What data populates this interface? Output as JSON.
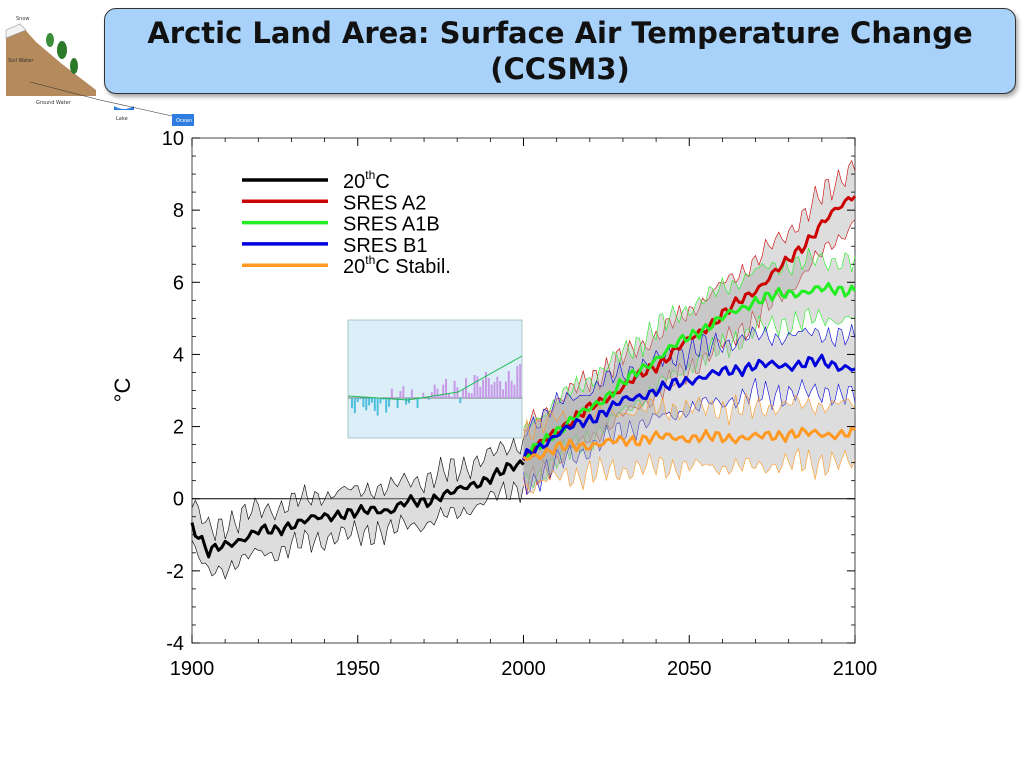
{
  "slide": {
    "title_line1": "Arctic Land Area: Surface Air Temperature Change",
    "title_line2": "(CCSM3)"
  },
  "logo": {
    "icon": "hydrologic-cycle-diagram-icon",
    "labels": {
      "snow": "Snow",
      "soil_water": "Soil Water",
      "ground_water": "Ground Water",
      "lake": "Lake",
      "ocean": "Ocean"
    }
  },
  "inset": {
    "icon": "inset-bar-chart-thumbnail"
  },
  "chart_data": {
    "type": "line",
    "title": "",
    "xlabel": "",
    "ylabel": "°C",
    "xlim": [
      1900,
      2100
    ],
    "ylim": [
      -4,
      10
    ],
    "x_ticks": [
      1900,
      1950,
      2000,
      2050,
      2100
    ],
    "y_ticks": [
      -4,
      -2,
      0,
      2,
      4,
      6,
      8,
      10
    ],
    "y_tick_labels": [
      "-4",
      "-2",
      "0",
      "2",
      "4",
      "6",
      "8",
      "10"
    ],
    "zero_line": true,
    "grid": false,
    "legend_position": "top-left",
    "legend": [
      {
        "base": "20",
        "sup": "th",
        "rest": "C",
        "color": "#000000"
      },
      {
        "base": "SRES A2",
        "sup": "",
        "rest": "",
        "color": "#cc0000"
      },
      {
        "base": "SRES A1B",
        "sup": "",
        "rest": "",
        "color": "#22ee22"
      },
      {
        "base": "SRES B1",
        "sup": "",
        "rest": "",
        "color": "#0000dd"
      },
      {
        "base": "20",
        "sup": "th",
        "rest": "C Stabil.",
        "color": "#ff9922"
      }
    ],
    "series": [
      {
        "name": "20thC",
        "color": "#000000",
        "band": true,
        "x": [
          1900,
          1905,
          1910,
          1915,
          1920,
          1925,
          1930,
          1935,
          1940,
          1945,
          1950,
          1955,
          1960,
          1965,
          1970,
          1975,
          1980,
          1985,
          1990,
          1995,
          2000
        ],
        "y": [
          -0.7,
          -1.5,
          -1.3,
          -1.1,
          -0.9,
          -0.9,
          -0.7,
          -0.6,
          -0.5,
          -0.4,
          -0.4,
          -0.3,
          -0.3,
          -0.1,
          -0.1,
          0.1,
          0.2,
          0.4,
          0.6,
          0.8,
          1.0
        ]
      },
      {
        "name": "SRES A2",
        "color": "#cc0000",
        "band": true,
        "x": [
          2000,
          2010,
          2020,
          2030,
          2040,
          2050,
          2060,
          2070,
          2080,
          2090,
          2100
        ],
        "y": [
          1.1,
          1.9,
          2.5,
          3.1,
          3.7,
          4.4,
          5.1,
          5.8,
          6.6,
          7.6,
          8.5
        ]
      },
      {
        "name": "SRES A1B",
        "color": "#22ee22",
        "band": true,
        "x": [
          2000,
          2010,
          2020,
          2030,
          2040,
          2050,
          2060,
          2070,
          2080,
          2090,
          2100
        ],
        "y": [
          1.1,
          1.9,
          2.5,
          3.2,
          3.9,
          4.5,
          5.0,
          5.5,
          5.7,
          5.8,
          5.8
        ]
      },
      {
        "name": "SRES B1",
        "color": "#0000dd",
        "band": true,
        "x": [
          2000,
          2010,
          2020,
          2030,
          2040,
          2050,
          2060,
          2070,
          2080,
          2090,
          2100
        ],
        "y": [
          1.1,
          1.8,
          2.2,
          2.7,
          3.0,
          3.3,
          3.5,
          3.7,
          3.7,
          3.8,
          3.6
        ]
      },
      {
        "name": "20thC Stabil.",
        "color": "#ff9922",
        "band": true,
        "x": [
          2000,
          2010,
          2020,
          2030,
          2040,
          2050,
          2060,
          2070,
          2080,
          2090,
          2100
        ],
        "y": [
          1.1,
          1.4,
          1.5,
          1.6,
          1.7,
          1.7,
          1.7,
          1.7,
          1.8,
          1.8,
          1.8
        ]
      }
    ]
  }
}
